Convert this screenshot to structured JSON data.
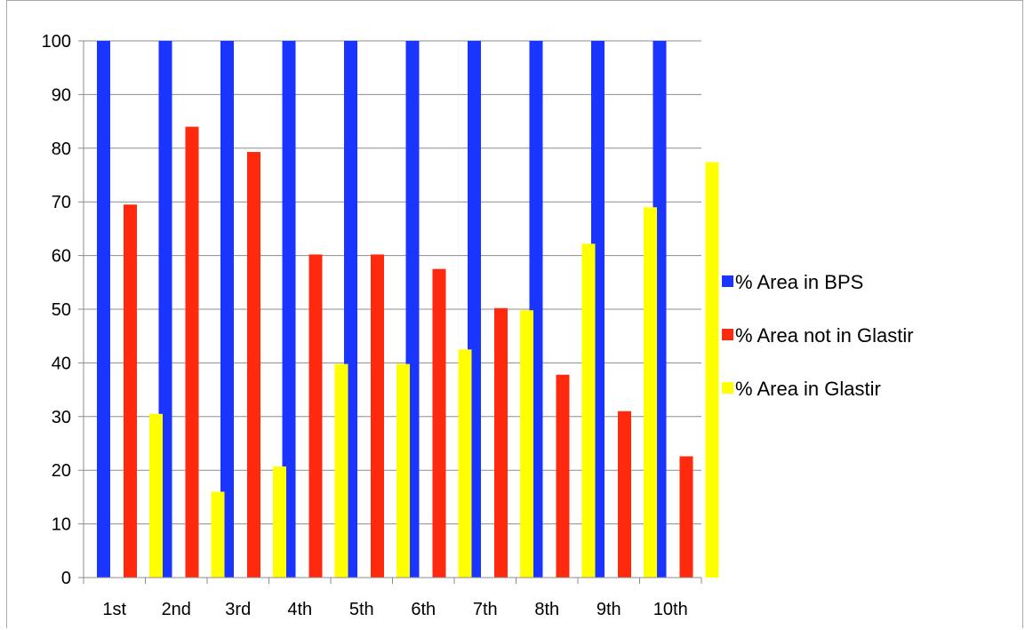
{
  "chart_data": {
    "type": "bar",
    "title": "",
    "xlabel": "",
    "ylabel": "",
    "ylim": [
      0,
      100
    ],
    "yticks": [
      0,
      10,
      20,
      30,
      40,
      50,
      60,
      70,
      80,
      90,
      100
    ],
    "grid": true,
    "legend_position": "right",
    "categories": [
      "1st",
      "2nd",
      "3rd",
      "4th",
      "5th",
      "6th",
      "7th",
      "8th",
      "9th",
      "10th"
    ],
    "series": [
      {
        "name": "% Area in BPS",
        "color": "#1a35ff",
        "values": [
          100,
          100,
          100,
          100,
          100,
          100,
          100,
          100,
          100,
          100
        ]
      },
      {
        "name": "% Area not in Glastir",
        "color": "#ff2a0d",
        "values": [
          69.5,
          84,
          79.3,
          60.2,
          60.2,
          57.5,
          50.2,
          37.8,
          31,
          22.6
        ]
      },
      {
        "name": "% Area in Glastir",
        "color": "#ffff00",
        "values": [
          30.5,
          16,
          20.7,
          39.8,
          39.8,
          42.5,
          49.8,
          62.2,
          69,
          77.4
        ]
      }
    ]
  }
}
